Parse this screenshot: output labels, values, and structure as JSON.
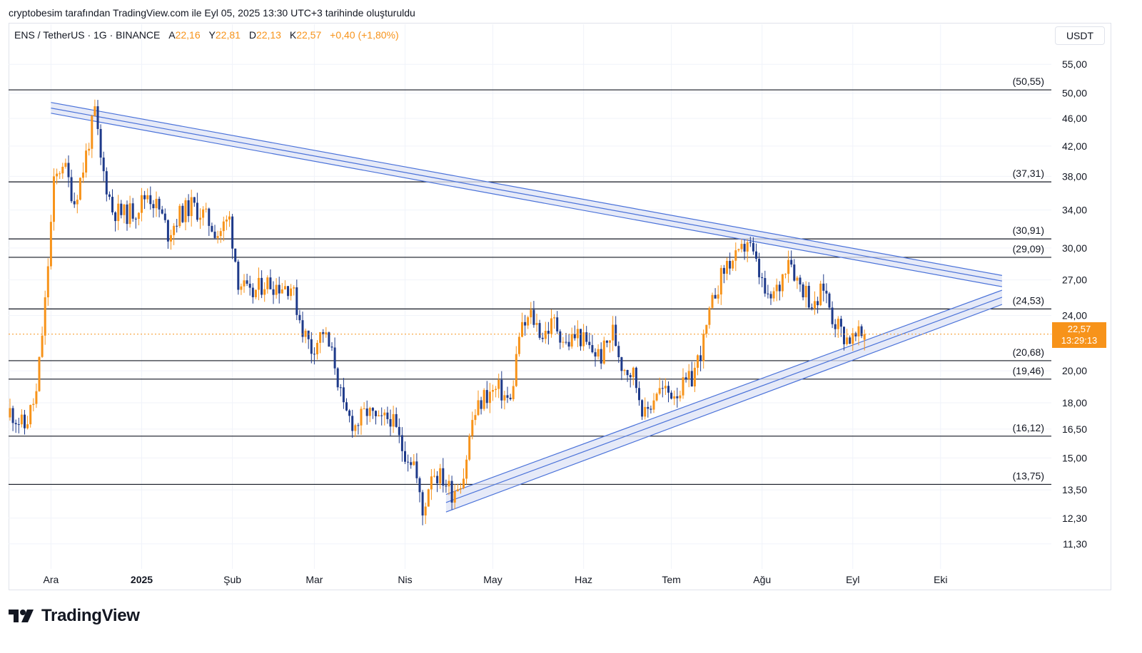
{
  "caption": "cryptobesim tarafından TradingView.com ile Eyl 05, 2025 13:30 UTC+3 tarihinde oluşturuldu",
  "header": {
    "symbol": "ENS / TetherUS · 1G · BINANCE",
    "open_label": "A",
    "open": "22,16",
    "high_label": "Y",
    "high": "22,81",
    "low_label": "D",
    "low": "22,13",
    "close_label": "K",
    "close": "22,57",
    "change": "+0,40 (+1,80%)"
  },
  "currency": "USDT",
  "last_price": {
    "value": "22,57",
    "countdown": "13:29:13"
  },
  "brand": "TradingView",
  "colors": {
    "up": "#f7931a",
    "down": "#1e3a8a",
    "trendline": "#4a72d9",
    "band_fill": "#dde3f5",
    "level": "#131722"
  },
  "chart_data": {
    "type": "candlestick",
    "scale": "log",
    "ylim": [
      10.6,
      58.5
    ],
    "y_ticks": [
      {
        "v": 55,
        "label": "55,00"
      },
      {
        "v": 50,
        "label": "50,00"
      },
      {
        "v": 46,
        "label": "46,00"
      },
      {
        "v": 42,
        "label": "42,00"
      },
      {
        "v": 38,
        "label": "38,00"
      },
      {
        "v": 34,
        "label": "34,00"
      },
      {
        "v": 30,
        "label": "30,00"
      },
      {
        "v": 27,
        "label": "27,00"
      },
      {
        "v": 24,
        "label": "24,00"
      },
      {
        "v": 20,
        "label": "20,00"
      },
      {
        "v": 18,
        "label": "18,00"
      },
      {
        "v": 16.5,
        "label": "16,50"
      },
      {
        "v": 15,
        "label": "15,00"
      },
      {
        "v": 13.5,
        "label": "13,50"
      },
      {
        "v": 12.3,
        "label": "12,30"
      },
      {
        "v": 11.3,
        "label": "11,30"
      }
    ],
    "x_start": "2024-11-17",
    "x_ticks": [
      {
        "date": "2024-12-01",
        "label": "Ara"
      },
      {
        "date": "2025-01-01",
        "label": "2025"
      },
      {
        "date": "2025-02-01",
        "label": "Şub"
      },
      {
        "date": "2025-03-01",
        "label": "Mar"
      },
      {
        "date": "2025-04-01",
        "label": "Nis"
      },
      {
        "date": "2025-05-01",
        "label": "May"
      },
      {
        "date": "2025-06-01",
        "label": "Haz"
      },
      {
        "date": "2025-07-01",
        "label": "Tem"
      },
      {
        "date": "2025-08-01",
        "label": "Ağu"
      },
      {
        "date": "2025-09-01",
        "label": "Eyl"
      },
      {
        "date": "2025-10-01",
        "label": "Eki"
      }
    ],
    "levels": [
      {
        "v": 50.55,
        "label": "(50,55)"
      },
      {
        "v": 37.31,
        "label": "(37,31)"
      },
      {
        "v": 30.91,
        "label": "(30,91)"
      },
      {
        "v": 29.09,
        "label": "(29,09)"
      },
      {
        "v": 24.53,
        "label": "(24,53)"
      },
      {
        "v": 20.68,
        "label": "(20,68)"
      },
      {
        "v": 19.46,
        "label": "(19,46)"
      },
      {
        "v": 16.12,
        "label": "(16,12)"
      },
      {
        "v": 13.75,
        "label": "(13,75)"
      }
    ],
    "last": 22.57,
    "trend_bands": [
      {
        "name": "resistance",
        "start_date": "2024-12-01",
        "end_date": "2025-10-22",
        "start_vals": [
          48.5,
          47.6,
          46.8
        ],
        "end_vals": [
          27.4,
          26.9,
          26.4
        ]
      },
      {
        "name": "support",
        "start_date": "2025-04-15",
        "end_date": "2025-10-22",
        "start_vals": [
          13.3,
          12.95,
          12.55
        ],
        "end_vals": [
          26.1,
          25.5,
          24.9
        ]
      }
    ],
    "anchors": [
      [
        "2024-11-17",
        17.5
      ],
      [
        "2024-11-22",
        16.6
      ],
      [
        "2024-11-26",
        18.5
      ],
      [
        "2024-11-29",
        25.0
      ],
      [
        "2024-12-02",
        37.0
      ],
      [
        "2024-12-05",
        40.0
      ],
      [
        "2024-12-09",
        35.0
      ],
      [
        "2024-12-12",
        39.0
      ],
      [
        "2024-12-16",
        47.0
      ],
      [
        "2024-12-18",
        40.0
      ],
      [
        "2024-12-22",
        34.0
      ],
      [
        "2024-12-26",
        33.5
      ],
      [
        "2024-12-30",
        34.0
      ],
      [
        "2025-01-03",
        36.0
      ],
      [
        "2025-01-07",
        34.0
      ],
      [
        "2025-01-10",
        31.5
      ],
      [
        "2025-01-14",
        33.5
      ],
      [
        "2025-01-18",
        34.5
      ],
      [
        "2025-01-22",
        33.5
      ],
      [
        "2025-01-27",
        31.5
      ],
      [
        "2025-01-31",
        33.0
      ],
      [
        "2025-02-03",
        27.0
      ],
      [
        "2025-02-07",
        25.5
      ],
      [
        "2025-02-12",
        26.8
      ],
      [
        "2025-02-17",
        26.5
      ],
      [
        "2025-02-21",
        26.5
      ],
      [
        "2025-02-25",
        23.0
      ],
      [
        "2025-02-28",
        21.5
      ],
      [
        "2025-03-04",
        22.8
      ],
      [
        "2025-03-08",
        20.5
      ],
      [
        "2025-03-11",
        17.5
      ],
      [
        "2025-03-15",
        16.7
      ],
      [
        "2025-03-19",
        17.5
      ],
      [
        "2025-03-23",
        16.8
      ],
      [
        "2025-03-27",
        17.2
      ],
      [
        "2025-03-31",
        15.5
      ],
      [
        "2025-04-04",
        14.8
      ],
      [
        "2025-04-07",
        12.4
      ],
      [
        "2025-04-10",
        14.4
      ],
      [
        "2025-04-14",
        14.0
      ],
      [
        "2025-04-17",
        13.4
      ],
      [
        "2025-04-21",
        14.2
      ],
      [
        "2025-04-24",
        17.0
      ],
      [
        "2025-04-28",
        18.4
      ],
      [
        "2025-05-03",
        18.8
      ],
      [
        "2025-05-07",
        18.0
      ],
      [
        "2025-05-10",
        22.5
      ],
      [
        "2025-05-14",
        24.0
      ],
      [
        "2025-05-18",
        22.5
      ],
      [
        "2025-05-22",
        23.5
      ],
      [
        "2025-05-26",
        21.8
      ],
      [
        "2025-05-30",
        22.6
      ],
      [
        "2025-06-03",
        21.5
      ],
      [
        "2025-06-07",
        21.0
      ],
      [
        "2025-06-11",
        22.8
      ],
      [
        "2025-06-14",
        20.5
      ],
      [
        "2025-06-18",
        19.8
      ],
      [
        "2025-06-22",
        17.2
      ],
      [
        "2025-06-26",
        18.8
      ],
      [
        "2025-06-30",
        18.6
      ],
      [
        "2025-07-04",
        18.8
      ],
      [
        "2025-07-08",
        19.5
      ],
      [
        "2025-07-12",
        22.0
      ],
      [
        "2025-07-16",
        26.0
      ],
      [
        "2025-07-20",
        28.5
      ],
      [
        "2025-07-24",
        29.0
      ],
      [
        "2025-07-27",
        30.8
      ],
      [
        "2025-07-31",
        27.5
      ],
      [
        "2025-08-03",
        25.0
      ],
      [
        "2025-08-07",
        26.5
      ],
      [
        "2025-08-10",
        29.5
      ],
      [
        "2025-08-13",
        27.0
      ],
      [
        "2025-08-16",
        26.0
      ],
      [
        "2025-08-19",
        24.5
      ],
      [
        "2025-08-22",
        26.5
      ],
      [
        "2025-08-25",
        24.0
      ],
      [
        "2025-08-29",
        22.5
      ],
      [
        "2025-09-01",
        22.2
      ],
      [
        "2025-09-05",
        22.57
      ]
    ]
  }
}
